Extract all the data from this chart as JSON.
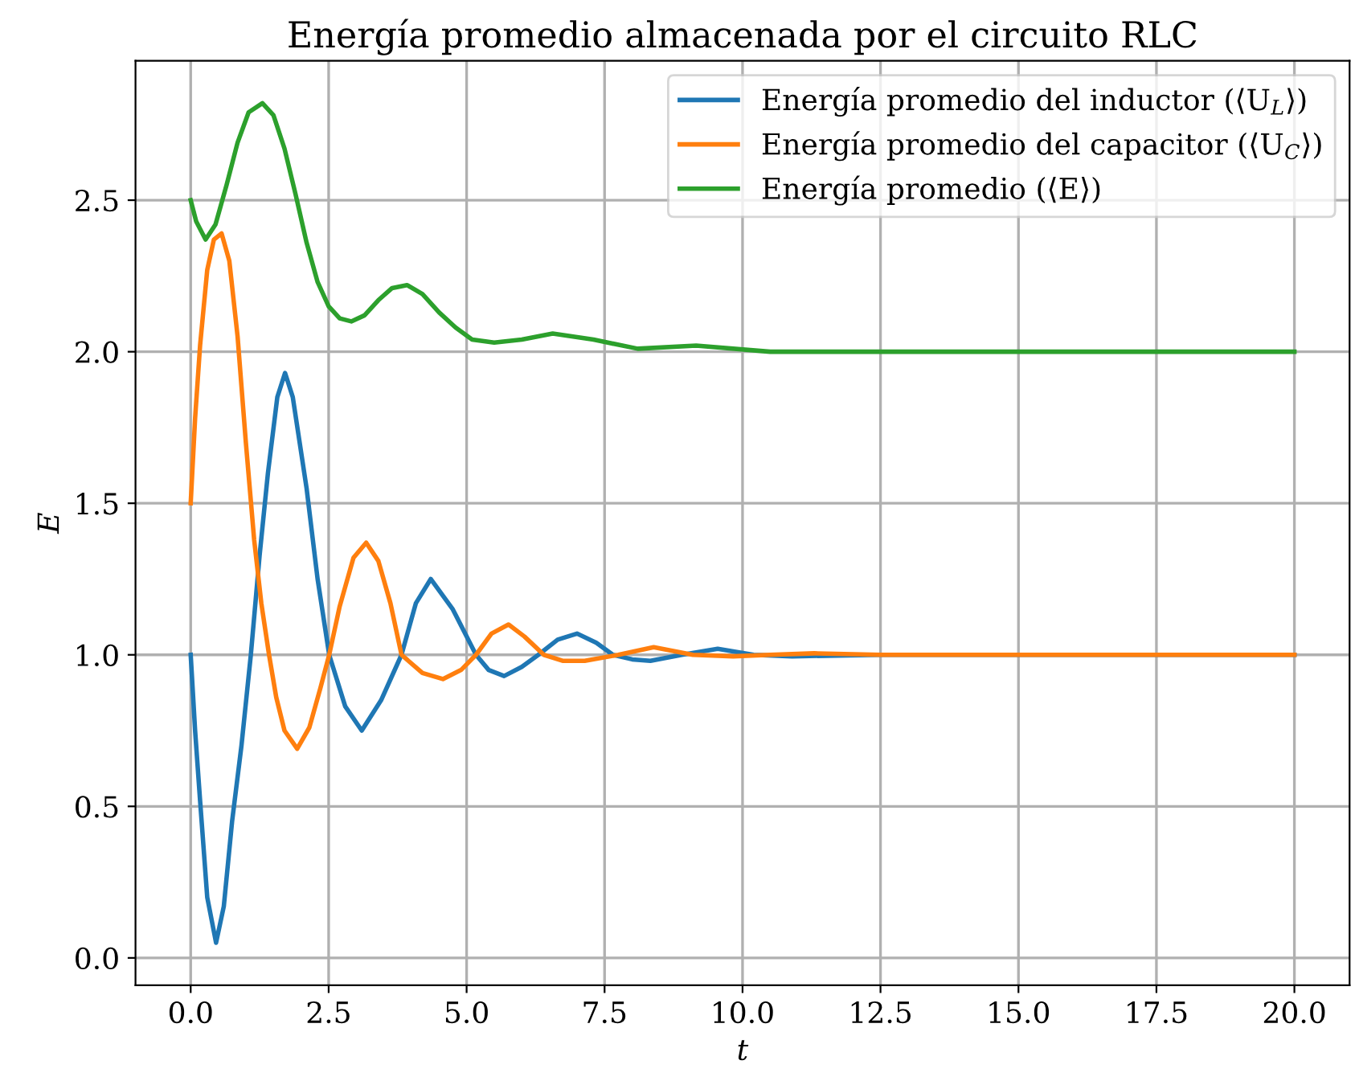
{
  "chart_data": {
    "type": "line",
    "title": "Energía promedio almacenada por el circuito RLC",
    "xlabel": "t",
    "ylabel": "E",
    "series": [
      {
        "name": "Energía promedio del inductor (⟨U$_{L}$⟩)",
        "color": "#1f77b4",
        "x": [
          0,
          0.08,
          0.17,
          0.3,
          0.46,
          0.6,
          0.75,
          0.92,
          1.09,
          1.25,
          1.4,
          1.57,
          1.71,
          1.85,
          2.1,
          2.3,
          2.51,
          2.8,
          3.1,
          3.45,
          3.82,
          4.08,
          4.35,
          4.75,
          5.17,
          5.4,
          5.68,
          6.0,
          6.3,
          6.65,
          7.0,
          7.35,
          7.65,
          8.0,
          8.33,
          8.9,
          9.55,
          10.2,
          10.9,
          12.5,
          15,
          20
        ],
        "values": [
          1.0,
          0.75,
          0.52,
          0.2,
          0.05,
          0.17,
          0.45,
          0.7,
          1.0,
          1.33,
          1.6,
          1.85,
          1.93,
          1.85,
          1.55,
          1.25,
          1.0,
          0.83,
          0.75,
          0.85,
          1.0,
          1.17,
          1.25,
          1.15,
          1.0,
          0.95,
          0.93,
          0.96,
          1.0,
          1.05,
          1.07,
          1.04,
          1.0,
          0.985,
          0.98,
          1.0,
          1.02,
          1.0,
          0.995,
          1.0,
          1.0,
          1.0
        ]
      },
      {
        "name": "Energía promedio del capacitor (⟨U$_{C}$⟩)",
        "color": "#ff7f0e",
        "x": [
          0,
          0.08,
          0.17,
          0.3,
          0.42,
          0.56,
          0.7,
          0.85,
          1.0,
          1.15,
          1.28,
          1.42,
          1.55,
          1.7,
          1.93,
          2.15,
          2.35,
          2.51,
          2.7,
          2.95,
          3.18,
          3.4,
          3.62,
          3.82,
          4.2,
          4.57,
          4.9,
          5.17,
          5.45,
          5.76,
          6.05,
          6.4,
          6.75,
          7.14,
          7.75,
          8.39,
          9.1,
          9.83,
          10.5,
          11.3,
          12.5,
          15,
          20
        ],
        "values": [
          1.5,
          1.78,
          2.02,
          2.27,
          2.37,
          2.39,
          2.3,
          2.05,
          1.7,
          1.38,
          1.17,
          1.0,
          0.86,
          0.75,
          0.69,
          0.76,
          0.89,
          1.0,
          1.16,
          1.32,
          1.37,
          1.31,
          1.17,
          1.0,
          0.94,
          0.92,
          0.95,
          1.0,
          1.07,
          1.1,
          1.06,
          1.0,
          0.98,
          0.98,
          1.0,
          1.025,
          1.0,
          0.995,
          1.0,
          1.005,
          1.0,
          1.0,
          1.0
        ]
      },
      {
        "name": "Energía promedio (⟨E⟩)",
        "color": "#2ca02c",
        "x": [
          0,
          0.1,
          0.27,
          0.45,
          0.65,
          0.85,
          1.05,
          1.3,
          1.5,
          1.7,
          1.9,
          2.1,
          2.3,
          2.5,
          2.7,
          2.91,
          3.15,
          3.4,
          3.65,
          3.92,
          4.2,
          4.5,
          4.8,
          5.1,
          5.5,
          6.0,
          6.56,
          7.3,
          8.1,
          9.16,
          10.5,
          12.5,
          20
        ],
        "values": [
          2.5,
          2.43,
          2.37,
          2.42,
          2.55,
          2.69,
          2.79,
          2.82,
          2.78,
          2.67,
          2.52,
          2.36,
          2.23,
          2.15,
          2.11,
          2.1,
          2.12,
          2.17,
          2.21,
          2.22,
          2.19,
          2.13,
          2.08,
          2.04,
          2.03,
          2.04,
          2.06,
          2.04,
          2.01,
          2.02,
          2.0,
          2.0,
          2.0
        ]
      }
    ],
    "xlim": [
      -1,
      21
    ],
    "ylim": [
      -0.09,
      2.96
    ],
    "xticks": [
      {
        "value": 0,
        "label": "0.0"
      },
      {
        "value": 2.5,
        "label": "2.5"
      },
      {
        "value": 5,
        "label": "5.0"
      },
      {
        "value": 7.5,
        "label": "7.5"
      },
      {
        "value": 10,
        "label": "10.0"
      },
      {
        "value": 12.5,
        "label": "12.5"
      },
      {
        "value": 15,
        "label": "15.0"
      },
      {
        "value": 17.5,
        "label": "17.5"
      },
      {
        "value": 20,
        "label": "20.0"
      }
    ],
    "yticks": [
      {
        "value": 0,
        "label": "0.0"
      },
      {
        "value": 0.5,
        "label": "0.5"
      },
      {
        "value": 1,
        "label": "1.0"
      },
      {
        "value": 1.5,
        "label": "1.5"
      },
      {
        "value": 2,
        "label": "2.0"
      },
      {
        "value": 2.5,
        "label": "2.5"
      }
    ],
    "grid": true,
    "legend": "top right",
    "line_style": "solid",
    "marker": "none"
  }
}
